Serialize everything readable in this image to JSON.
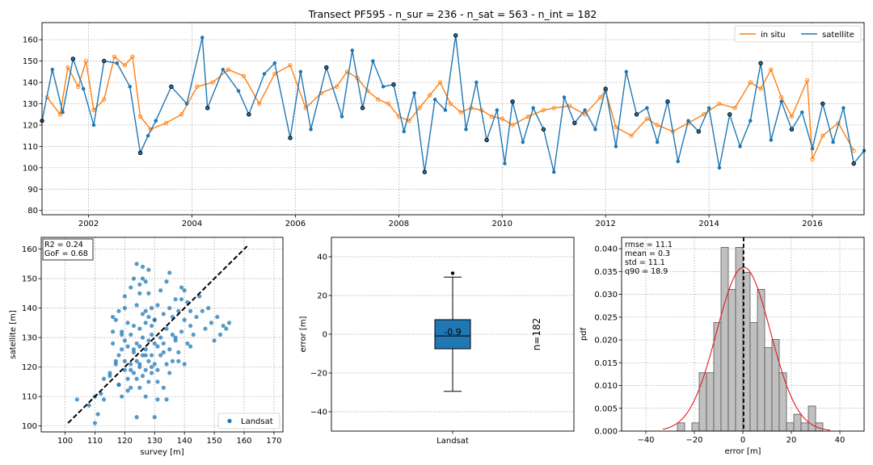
{
  "figure_title": "Transect PF595 - n_sur = 236 - n_sat = 563 - n_int = 182",
  "colors": {
    "in_situ": "#ff7f0e",
    "satellite": "#1f77b4",
    "hist_bar": "#c0c0c0",
    "pdf_curve": "#e31a1c"
  },
  "chart_data": [
    {
      "id": "timeseries",
      "type": "line",
      "title": "Transect PF595 - n_sur = 236 - n_sat = 563 - n_int = 182",
      "xlim": [
        2001.1,
        2017.0
      ],
      "ylim": [
        78,
        168
      ],
      "xticks": [
        2002,
        2004,
        2006,
        2008,
        2010,
        2012,
        2014,
        2016
      ],
      "xtick_labels": [
        "2002",
        "2004",
        "2006",
        "2008",
        "2010",
        "2012",
        "2014",
        "2016"
      ],
      "yticks": [
        80,
        90,
        100,
        110,
        120,
        130,
        140,
        150,
        160
      ],
      "ytick_labels": [
        "80",
        "90",
        "100",
        "110",
        "120",
        "130",
        "140",
        "150",
        "160"
      ],
      "grid": true,
      "legend_position": "top-right",
      "series": [
        {
          "name": "in situ",
          "color": "#ff7f0e",
          "marker": "open-circle",
          "x": [
            2001.2,
            2001.45,
            2001.6,
            2001.8,
            2001.95,
            2002.1,
            2002.3,
            2002.5,
            2002.7,
            2002.85,
            2003.0,
            2003.2,
            2003.5,
            2003.8,
            2004.1,
            2004.4,
            2004.7,
            2005.0,
            2005.3,
            2005.6,
            2005.9,
            2006.2,
            2006.5,
            2006.8,
            2007.0,
            2007.2,
            2007.4,
            2007.6,
            2007.8,
            2008.0,
            2008.2,
            2008.4,
            2008.6,
            2008.8,
            2009.0,
            2009.2,
            2009.4,
            2009.6,
            2009.8,
            2010.0,
            2010.2,
            2010.5,
            2010.8,
            2011.0,
            2011.3,
            2011.6,
            2011.9,
            2012.0,
            2012.2,
            2012.5,
            2012.8,
            2013.0,
            2013.3,
            2013.6,
            2013.9,
            2014.2,
            2014.5,
            2014.8,
            2015.0,
            2015.2,
            2015.4,
            2015.6,
            2015.9,
            2016.0,
            2016.2,
            2016.5,
            2016.8
          ],
          "y": [
            133,
            125,
            147,
            138,
            150,
            127,
            132,
            152,
            148,
            152,
            124,
            118,
            121,
            125,
            138,
            140,
            146,
            143,
            130,
            144,
            148,
            128,
            135,
            138,
            145,
            142,
            136,
            132,
            130,
            124,
            122,
            128,
            134,
            140,
            130,
            126,
            128,
            127,
            124,
            123,
            120,
            124,
            127,
            128,
            129,
            125,
            133,
            136,
            119,
            115,
            123,
            120,
            117,
            121,
            125,
            130,
            128,
            140,
            137,
            146,
            133,
            124,
            141,
            104,
            115,
            121,
            108
          ]
        },
        {
          "name": "satellite",
          "color": "#1f77b4",
          "marker": "dot",
          "x": [
            2001.1,
            2001.3,
            2001.5,
            2001.7,
            2001.9,
            2002.1,
            2002.3,
            2002.55,
            2002.8,
            2003.0,
            2003.15,
            2003.3,
            2003.6,
            2003.9,
            2004.2,
            2004.3,
            2004.6,
            2004.9,
            2005.1,
            2005.4,
            2005.6,
            2005.9,
            2006.1,
            2006.3,
            2006.6,
            2006.9,
            2007.1,
            2007.3,
            2007.5,
            2007.7,
            2007.9,
            2008.1,
            2008.3,
            2008.5,
            2008.7,
            2008.9,
            2009.1,
            2009.3,
            2009.5,
            2009.7,
            2009.9,
            2010.05,
            2010.2,
            2010.4,
            2010.6,
            2010.8,
            2011.0,
            2011.2,
            2011.4,
            2011.6,
            2011.8,
            2012.0,
            2012.2,
            2012.4,
            2012.6,
            2012.8,
            2013.0,
            2013.2,
            2013.4,
            2013.6,
            2013.8,
            2014.0,
            2014.2,
            2014.4,
            2014.6,
            2014.8,
            2015.0,
            2015.2,
            2015.4,
            2015.6,
            2015.8,
            2016.0,
            2016.2,
            2016.4,
            2016.6,
            2016.8,
            2017.0
          ],
          "y": [
            122,
            146,
            126,
            151,
            137,
            120,
            150,
            149,
            138,
            107,
            115,
            122,
            138,
            130,
            161,
            128,
            146,
            136,
            125,
            144,
            149,
            114,
            145,
            118,
            147,
            124,
            155,
            128,
            150,
            138,
            139,
            117,
            135,
            98,
            132,
            127,
            162,
            118,
            140,
            113,
            127,
            102,
            131,
            112,
            128,
            118,
            98,
            133,
            121,
            127,
            118,
            137,
            110,
            145,
            125,
            128,
            112,
            131,
            103,
            122,
            117,
            128,
            100,
            125,
            110,
            122,
            149,
            113,
            131,
            118,
            126,
            109,
            130,
            112,
            128,
            102,
            108
          ]
        }
      ]
    },
    {
      "id": "scatter",
      "type": "scatter",
      "xlabel": "survey [m]",
      "ylabel": "satellite [m]",
      "xlim": [
        92,
        173
      ],
      "ylim": [
        98,
        164
      ],
      "xticks": [
        100,
        110,
        120,
        130,
        140,
        150,
        160,
        170
      ],
      "xtick_labels": [
        "100",
        "110",
        "120",
        "130",
        "140",
        "150",
        "160",
        "170"
      ],
      "yticks": [
        100,
        110,
        120,
        130,
        140,
        150,
        160
      ],
      "ytick_labels": [
        "100",
        "110",
        "120",
        "130",
        "140",
        "150",
        "160"
      ],
      "grid": true,
      "annotation": [
        "R2 = 0.24",
        "GoF = 0.68"
      ],
      "legend_position": "bottom-right",
      "one_to_one_line": [
        [
          101,
          101
        ],
        [
          161,
          161
        ]
      ],
      "series": [
        {
          "name": "Landsat",
          "color": "#1f77b4",
          "x": [
            104,
            108,
            110,
            111,
            112,
            113,
            115,
            116,
            116,
            117,
            117,
            118,
            118,
            118,
            119,
            119,
            119,
            120,
            120,
            120,
            120,
            121,
            121,
            121,
            122,
            122,
            122,
            122,
            123,
            123,
            123,
            123,
            124,
            124,
            124,
            124,
            124,
            125,
            125,
            125,
            125,
            125,
            126,
            126,
            126,
            126,
            126,
            127,
            127,
            127,
            127,
            127,
            128,
            128,
            128,
            128,
            128,
            129,
            129,
            129,
            129,
            130,
            130,
            130,
            130,
            131,
            131,
            131,
            132,
            132,
            132,
            133,
            133,
            133,
            134,
            134,
            134,
            135,
            135,
            135,
            136,
            136,
            137,
            137,
            138,
            138,
            139,
            139,
            140,
            140,
            141,
            141,
            142,
            142,
            143,
            144,
            145,
            146,
            147,
            148,
            149,
            150,
            151,
            152,
            153,
            154,
            155,
            110,
            113,
            115,
            117,
            119,
            121,
            123,
            125,
            127,
            129,
            131,
            133,
            135,
            137,
            139,
            124,
            126,
            128,
            130,
            122,
            120,
            118,
            116,
            134,
            136,
            138,
            140,
            142,
            125,
            127,
            129,
            131
          ],
          "y": [
            109,
            107,
            110,
            104,
            111,
            116,
            117,
            128,
            132,
            121,
            136,
            114,
            124,
            139,
            110,
            126,
            132,
            119,
            122,
            129,
            140,
            112,
            127,
            135,
            113,
            121,
            131,
            147,
            118,
            125,
            134,
            150,
            103,
            116,
            122,
            128,
            155,
            113,
            120,
            127,
            133,
            145,
            117,
            124,
            130,
            138,
            154,
            110,
            119,
            126,
            135,
            149,
            115,
            122,
            129,
            137,
            145,
            118,
            124,
            131,
            140,
            103,
            121,
            128,
            136,
            119,
            127,
            141,
            124,
            130,
            146,
            113,
            128,
            138,
            121,
            133,
            149,
            126,
            140,
            152,
            122,
            137,
            130,
            143,
            125,
            139,
            132,
            147,
            121,
            136,
            128,
            142,
            134,
            139,
            131,
            137,
            144,
            139,
            133,
            140,
            135,
            129,
            137,
            131,
            134,
            133,
            135,
            101,
            109,
            118,
            122,
            131,
            116,
            126,
            121,
            139,
            134,
            109,
            125,
            118,
            129,
            143,
            141,
            150,
            153,
            136,
            119,
            144,
            114,
            137,
            109,
            131,
            122,
            146,
            127,
            148,
            124,
            120,
            115
          ]
        }
      ]
    },
    {
      "id": "boxplot",
      "type": "box",
      "ylabel": "error [m]",
      "ylim": [
        -50,
        50
      ],
      "yticks": [
        -40,
        -20,
        0,
        20,
        40
      ],
      "ytick_labels": [
        "−40",
        "−20",
        "0",
        "20",
        "40"
      ],
      "category": "Landsat",
      "median_label": "-0.9",
      "count_label": "n=182",
      "whisker_low": -29.5,
      "q1": -7.5,
      "median": -0.9,
      "q3": 7.5,
      "whisker_high": 29.5,
      "outliers": [
        31.5
      ],
      "color": "#1f77b4"
    },
    {
      "id": "histogram",
      "type": "bar",
      "xlabel": "error [m]",
      "ylabel": "pdf",
      "xlim": [
        -50,
        50
      ],
      "ylim": [
        0,
        0.0425
      ],
      "xticks": [
        -40,
        -20,
        0,
        20,
        40
      ],
      "xtick_labels": [
        "−40",
        "−20",
        "0",
        "20",
        "40"
      ],
      "yticks": [
        0.0,
        0.005,
        0.01,
        0.015,
        0.02,
        0.025,
        0.03,
        0.035,
        0.04
      ],
      "ytick_labels": [
        "0.000",
        "0.005",
        "0.010",
        "0.015",
        "0.020",
        "0.025",
        "0.030",
        "0.035",
        "0.040"
      ],
      "grid": true,
      "stats": [
        "rmse = 11.1",
        "mean = 0.3",
        "std = 11.1",
        "q90 = 18.9"
      ],
      "bin_edges": [
        -30,
        -27,
        -24,
        -21,
        -18,
        -15,
        -12,
        -9,
        -6,
        -3,
        0,
        3,
        6,
        9,
        12,
        15,
        18,
        21,
        24,
        27,
        30,
        33
      ],
      "values": [
        0.0,
        0.0018,
        0.0,
        0.0018,
        0.0128,
        0.0128,
        0.0238,
        0.0403,
        0.0311,
        0.0403,
        0.0348,
        0.0238,
        0.0311,
        0.0183,
        0.0201,
        0.0128,
        0.0018,
        0.0037,
        0.0018,
        0.0055,
        0.0018
      ],
      "pdf_curve": {
        "mean": 0.3,
        "std": 11.1,
        "x_range": [
          -33,
          36
        ]
      },
      "mean_line": 0.3
    }
  ]
}
